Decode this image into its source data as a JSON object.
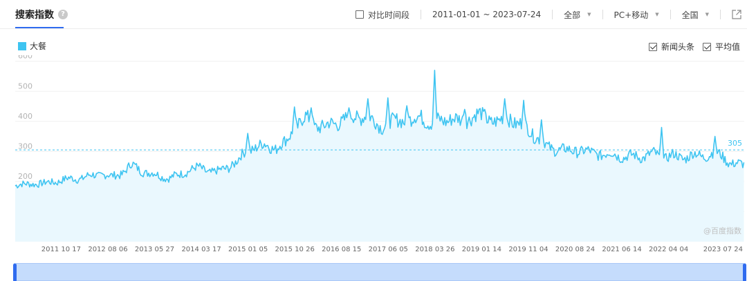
{
  "header": {
    "title": "搜索指数",
    "help_icon": "?",
    "compare_label": "对比时间段",
    "date_range": "2011-01-01 ~ 2023-07-24",
    "source_select": "全部",
    "device_select": "PC+移动",
    "region_select": "全国"
  },
  "options": {
    "news_label": "新闻头条",
    "avg_label": "平均值"
  },
  "colors": {
    "series": "#3ec4f1",
    "fill": "#eaf8fe",
    "accent": "#2f6bef",
    "avg_line": "#3ec4f1"
  },
  "chart_data": {
    "type": "area",
    "title": "",
    "xlabel": "",
    "ylabel": "",
    "ylim": [
      0,
      620
    ],
    "yticks": [
      "100",
      "200",
      "300",
      "400",
      "500",
      "600"
    ],
    "grid": true,
    "legend_position": "top-left",
    "xtick_labels": [
      "2011 10 17",
      "2012 08 06",
      "2013 05 27",
      "2014 03 17",
      "2015 01 05",
      "2015 10 26",
      "2016 08 15",
      "2017 06 05",
      "2018 03 26",
      "2019 01 14",
      "2019 11 04",
      "2020 08 24",
      "2021 06 14",
      "2022 04 04",
      "2023 07 24"
    ],
    "average": 305,
    "average_label": "305",
    "watermark": "@百度指数",
    "series": [
      {
        "name": "大餐",
        "points": [
          [
            "2011-01",
            190
          ],
          [
            "2011-03",
            188
          ],
          [
            "2011-05",
            195
          ],
          [
            "2011-07",
            192
          ],
          [
            "2011-09",
            200
          ],
          [
            "2011-11",
            205
          ],
          [
            "2012-01",
            210
          ],
          [
            "2012-03",
            212
          ],
          [
            "2012-05",
            220
          ],
          [
            "2012-07",
            225
          ],
          [
            "2012-09",
            215
          ],
          [
            "2012-11",
            228
          ],
          [
            "2013-01",
            255
          ],
          [
            "2013-03",
            238
          ],
          [
            "2013-05",
            226
          ],
          [
            "2013-07",
            218
          ],
          [
            "2013-09",
            212
          ],
          [
            "2013-11",
            222
          ],
          [
            "2014-01",
            240
          ],
          [
            "2014-03",
            245
          ],
          [
            "2014-05",
            235
          ],
          [
            "2014-07",
            232
          ],
          [
            "2014-09",
            248
          ],
          [
            "2014-11",
            268
          ],
          [
            "2015-01",
            305
          ],
          [
            "2015-03",
            315
          ],
          [
            "2015-05",
            320
          ],
          [
            "2015-07",
            312
          ],
          [
            "2015-09",
            330
          ],
          [
            "2015-11",
            385
          ],
          [
            "2016-01",
            410
          ],
          [
            "2016-03",
            390
          ],
          [
            "2016-05",
            380
          ],
          [
            "2016-07",
            395
          ],
          [
            "2016-09",
            405
          ],
          [
            "2016-11",
            415
          ],
          [
            "2017-01",
            420
          ],
          [
            "2017-03",
            400
          ],
          [
            "2017-05",
            385
          ],
          [
            "2017-07",
            395
          ],
          [
            "2017-09",
            410
          ],
          [
            "2017-11",
            400
          ],
          [
            "2018-01",
            420
          ],
          [
            "2018-03",
            390
          ],
          [
            "2018-05",
            405
          ],
          [
            "2018-07",
            410
          ],
          [
            "2018-09",
            398
          ],
          [
            "2018-11",
            415
          ],
          [
            "2019-01",
            420
          ],
          [
            "2019-03",
            408
          ],
          [
            "2019-05",
            395
          ],
          [
            "2019-07",
            415
          ],
          [
            "2019-09",
            388
          ],
          [
            "2019-11",
            378
          ],
          [
            "2020-01",
            345
          ],
          [
            "2020-03",
            315
          ],
          [
            "2020-05",
            308
          ],
          [
            "2020-07",
            302
          ],
          [
            "2020-09",
            305
          ],
          [
            "2020-11",
            298
          ],
          [
            "2021-01",
            296
          ],
          [
            "2021-03",
            288
          ],
          [
            "2021-05",
            292
          ],
          [
            "2021-07",
            280
          ],
          [
            "2021-09",
            285
          ],
          [
            "2021-11",
            283
          ],
          [
            "2022-01",
            292
          ],
          [
            "2022-03",
            280
          ],
          [
            "2022-05",
            286
          ],
          [
            "2022-07",
            278
          ],
          [
            "2022-09",
            290
          ],
          [
            "2022-11",
            282
          ],
          [
            "2023-01",
            295
          ],
          [
            "2023-03",
            285
          ],
          [
            "2023-05",
            262
          ],
          [
            "2023-07",
            255
          ]
        ],
        "peaks": [
          [
            "2015-01-05",
            360
          ],
          [
            "2015-10-26",
            448
          ],
          [
            "2016-02-08",
            445
          ],
          [
            "2016-10-03",
            445
          ],
          [
            "2017-01-30",
            475
          ],
          [
            "2017-06-05",
            478
          ],
          [
            "2017-10-02",
            452
          ],
          [
            "2018-03-26",
            570
          ],
          [
            "2018-10-01",
            440
          ],
          [
            "2019-02-04",
            440
          ],
          [
            "2019-06-10",
            475
          ],
          [
            "2019-10-07",
            470
          ],
          [
            "2020-01-27",
            405
          ],
          [
            "2022-02-21",
            380
          ],
          [
            "2023-01-23",
            350
          ]
        ]
      }
    ]
  },
  "slider": {
    "start": "2011-01-01",
    "end": "2023-07-24"
  }
}
